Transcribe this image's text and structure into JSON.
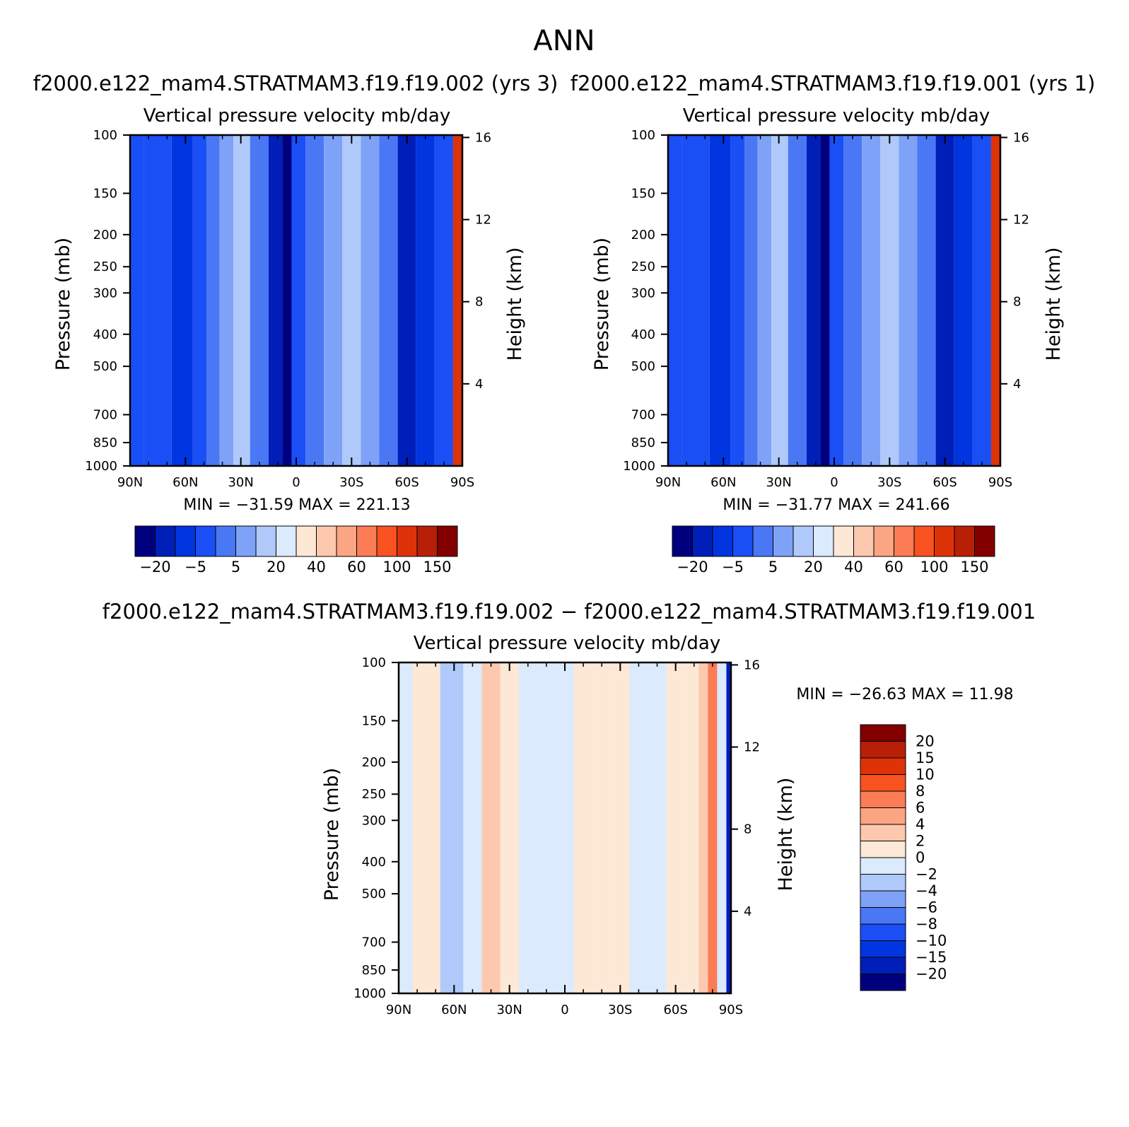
{
  "figure": {
    "title": "ANN"
  },
  "colors": {
    "main_levels": [
      "#00007f",
      "#001fb8",
      "#0035e0",
      "#1a4ff5",
      "#4a78f5",
      "#7ea2f7",
      "#b0c9fb",
      "#dbeafd",
      "#fde8d6",
      "#fdc9ae",
      "#fca583",
      "#fb7c55",
      "#f7521f",
      "#de3309",
      "#b72007",
      "#830000"
    ],
    "diff_levels": [
      "#00007f",
      "#001fb8",
      "#0035e0",
      "#1a4ff5",
      "#4a78f5",
      "#7ea2f7",
      "#b0c9fb",
      "#dbeafd",
      "#fde8d6",
      "#fdc9ae",
      "#fca583",
      "#fb7c55",
      "#f7521f",
      "#de3309",
      "#b72007",
      "#830000"
    ]
  },
  "chart_data": [
    {
      "id": "panel-test",
      "type": "heatmap",
      "case_title": "f2000.e122_mam4.STRATMAM3.f19.f19.002 (yrs 3)",
      "variable_title": "Vertical pressure velocity   mb/day",
      "ylabel": "Pressure (mb)",
      "y2label": "Height (km)",
      "x_ticks": [
        "90N",
        "60N",
        "30N",
        "0",
        "30S",
        "60S",
        "90S"
      ],
      "y_ticks": [
        "100",
        "150",
        "200",
        "250",
        "300",
        "400",
        "500",
        "700",
        "850",
        "1000"
      ],
      "y_tick_values": [
        100,
        150,
        200,
        250,
        300,
        400,
        500,
        700,
        850,
        1000
      ],
      "y2_ticks": [
        "16",
        "12",
        "8",
        "4"
      ],
      "y2_tick_values": [
        16,
        12,
        8,
        4
      ],
      "xlim": [
        -90,
        90
      ],
      "ylim_mb": [
        100,
        1000
      ],
      "stats": "MIN = −31.59   MAX = 221.13",
      "min": -31.59,
      "max": 221.13,
      "colorbar_labels": [
        "−20",
        "−5",
        "5",
        "20",
        "40",
        "60",
        "100",
        "150"
      ],
      "approx_field_levels_by_latitude": {
        "lat": [
          90,
          75,
          60,
          52,
          45,
          38,
          30,
          20,
          10,
          5,
          0,
          -10,
          -20,
          -30,
          -40,
          -50,
          -60,
          -70,
          -80,
          -90
        ],
        "level_index": [
          3,
          3,
          2,
          3,
          4,
          5,
          6,
          4,
          1,
          0,
          3,
          4,
          5,
          6,
          5,
          4,
          1,
          2,
          3,
          13
        ]
      }
    },
    {
      "id": "panel-control",
      "type": "heatmap",
      "case_title": "f2000.e122_mam4.STRATMAM3.f19.f19.001 (yrs 1)",
      "variable_title": "Vertical pressure velocity   mb/day",
      "ylabel": "Pressure (mb)",
      "y2label": "Height (km)",
      "x_ticks": [
        "90N",
        "60N",
        "30N",
        "0",
        "30S",
        "60S",
        "90S"
      ],
      "y_ticks": [
        "100",
        "150",
        "200",
        "250",
        "300",
        "400",
        "500",
        "700",
        "850",
        "1000"
      ],
      "y_tick_values": [
        100,
        150,
        200,
        250,
        300,
        400,
        500,
        700,
        850,
        1000
      ],
      "y2_ticks": [
        "16",
        "12",
        "8",
        "4"
      ],
      "y2_tick_values": [
        16,
        12,
        8,
        4
      ],
      "xlim": [
        -90,
        90
      ],
      "ylim_mb": [
        100,
        1000
      ],
      "stats": "MIN = −31.77   MAX = 241.66",
      "min": -31.77,
      "max": 241.66,
      "colorbar_labels": [
        "−20",
        "−5",
        "5",
        "20",
        "40",
        "60",
        "100",
        "150"
      ],
      "approx_field_levels_by_latitude": {
        "lat": [
          90,
          75,
          60,
          52,
          45,
          38,
          30,
          20,
          10,
          5,
          0,
          -10,
          -20,
          -30,
          -40,
          -50,
          -60,
          -70,
          -80,
          -90
        ],
        "level_index": [
          3,
          3,
          2,
          3,
          4,
          5,
          6,
          4,
          1,
          0,
          3,
          4,
          5,
          6,
          5,
          4,
          1,
          2,
          3,
          13
        ]
      }
    },
    {
      "id": "panel-diff",
      "type": "heatmap",
      "case_title": "f2000.e122_mam4.STRATMAM3.f19.f19.002 − f2000.e122_mam4.STRATMAM3.f19.f19.001",
      "variable_title": "Vertical pressure velocity   mb/day",
      "ylabel": "Pressure (mb)",
      "y2label": "Height (km)",
      "x_ticks": [
        "90N",
        "60N",
        "30N",
        "0",
        "30S",
        "60S",
        "90S"
      ],
      "y_ticks": [
        "100",
        "150",
        "200",
        "250",
        "300",
        "400",
        "500",
        "700",
        "850",
        "1000"
      ],
      "y_tick_values": [
        100,
        150,
        200,
        250,
        300,
        400,
        500,
        700,
        850,
        1000
      ],
      "y2_ticks": [
        "16",
        "12",
        "8",
        "4"
      ],
      "y2_tick_values": [
        16,
        12,
        8,
        4
      ],
      "xlim": [
        -90,
        90
      ],
      "ylim_mb": [
        100,
        1000
      ],
      "stats": "MIN = −26.63   MAX =   11.98",
      "min": -26.63,
      "max": 11.98,
      "colorbar_labels": [
        "20",
        "15",
        "10",
        "8",
        "6",
        "4",
        "2",
        "0",
        "−2",
        "−4",
        "−6",
        "−8",
        "−10",
        "−15",
        "−20"
      ],
      "approx_field_levels_by_latitude": {
        "lat": [
          90,
          75,
          60,
          50,
          40,
          30,
          20,
          10,
          0,
          -10,
          -20,
          -30,
          -40,
          -50,
          -60,
          -70,
          -75,
          -80,
          -85,
          -90
        ],
        "level_index": [
          7,
          8,
          6,
          7,
          9,
          8,
          7,
          7,
          7,
          8,
          8,
          8,
          7,
          7,
          8,
          8,
          9,
          11,
          7,
          1
        ]
      }
    }
  ]
}
